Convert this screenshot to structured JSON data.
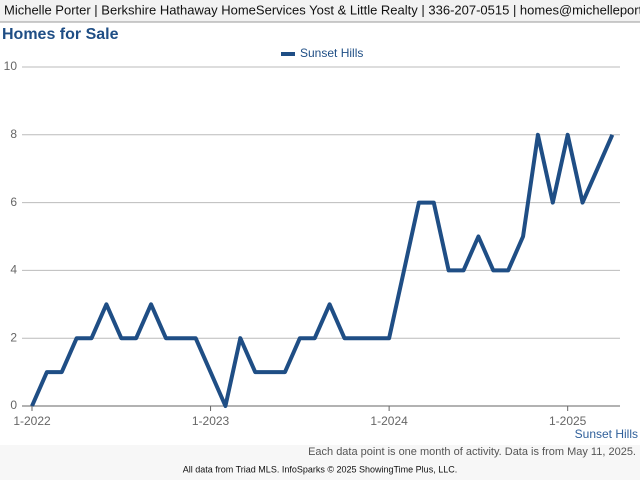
{
  "header": "Michelle Porter | Berkshire Hathaway HomeServices Yost & Little Realty | 336-207-0515 | homes@michelleporter.com",
  "chart_data": {
    "type": "line",
    "title": "Homes for Sale",
    "categories": [
      "1-2022",
      null,
      null,
      null,
      null,
      null,
      null,
      null,
      null,
      null,
      null,
      null,
      "1-2023",
      null,
      null,
      null,
      null,
      null,
      null,
      null,
      null,
      null,
      null,
      null,
      "1-2024",
      null,
      null,
      null,
      null,
      null,
      null,
      null,
      null,
      null,
      null,
      null,
      "1-2025",
      null,
      null,
      null
    ],
    "series": [
      {
        "name": "Sunset Hills",
        "color": "#1f4e85",
        "values": [
          0,
          1,
          1,
          2,
          2,
          3,
          2,
          2,
          3,
          2,
          2,
          2,
          1,
          0,
          2,
          1,
          1,
          1,
          2,
          2,
          3,
          2,
          2,
          2,
          2,
          4,
          6,
          6,
          4,
          4,
          5,
          4,
          4,
          5,
          8,
          6,
          8,
          6,
          7,
          8
        ]
      }
    ],
    "ylim": [
      0,
      10
    ],
    "yticks": [
      0,
      2,
      4,
      6,
      8,
      10
    ],
    "grid": true,
    "legend": "top",
    "note": "Each data point is one month of activity. Data is from May 11, 2025."
  },
  "footer": "All data from Triad MLS. InfoSparks © 2025 ShowingTime Plus, LLC."
}
